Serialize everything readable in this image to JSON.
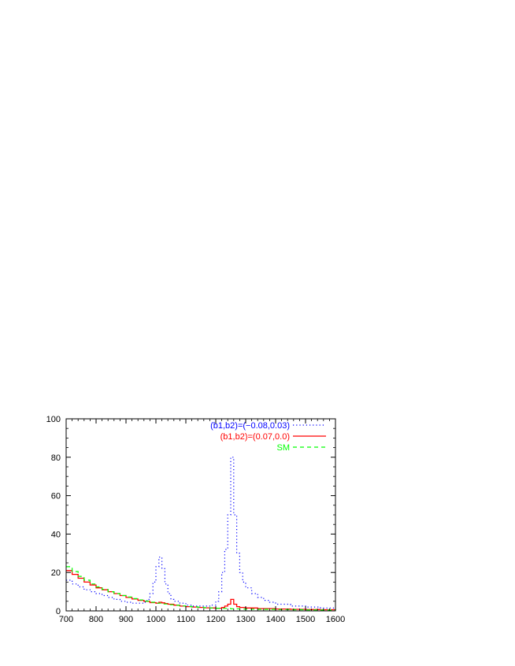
{
  "chart_data": {
    "type": "line",
    "title": "",
    "xlabel": "",
    "ylabel": "",
    "xlim": [
      700,
      1600
    ],
    "ylim": [
      0,
      100
    ],
    "xticks": [
      "700",
      "800",
      "900",
      "1000",
      "1100",
      "1200",
      "1300",
      "1400",
      "1500",
      "1600"
    ],
    "yticks": [
      "0",
      "20",
      "40",
      "60",
      "80",
      "100"
    ],
    "grid": false,
    "legend_position": "top-right",
    "series": [
      {
        "name": "(b1,b2)=(−0.08,0.03)",
        "color": "#0000ff",
        "style": "dotted",
        "x": [
          700,
          720,
          740,
          760,
          780,
          800,
          820,
          840,
          860,
          880,
          900,
          920,
          940,
          960,
          970,
          980,
          990,
          1000,
          1010,
          1020,
          1030,
          1040,
          1050,
          1060,
          1080,
          1100,
          1120,
          1140,
          1160,
          1180,
          1200,
          1210,
          1220,
          1230,
          1240,
          1250,
          1260,
          1270,
          1280,
          1290,
          1300,
          1320,
          1340,
          1360,
          1380,
          1400,
          1450,
          1500,
          1550,
          1600
        ],
        "values": [
          16,
          14,
          12.5,
          11,
          10,
          9,
          8,
          7,
          6,
          5,
          4.5,
          4,
          4,
          4.5,
          6,
          9,
          15,
          23,
          28,
          22,
          14,
          9,
          6,
          5,
          4,
          3,
          2.5,
          2.5,
          2.5,
          3,
          5,
          10,
          20,
          32,
          50,
          80,
          50,
          30,
          20,
          15,
          12,
          9,
          7,
          5.5,
          4.5,
          3.5,
          2.5,
          2,
          1.5,
          1
        ]
      },
      {
        "name": "(b1,b2)=(0.07,0.0)",
        "color": "#ff0000",
        "style": "solid",
        "x": [
          700,
          720,
          740,
          760,
          780,
          800,
          820,
          840,
          860,
          880,
          900,
          920,
          940,
          960,
          980,
          1000,
          1010,
          1020,
          1030,
          1040,
          1060,
          1080,
          1100,
          1120,
          1140,
          1160,
          1180,
          1200,
          1220,
          1230,
          1240,
          1250,
          1260,
          1270,
          1280,
          1300,
          1340,
          1400,
          1450,
          1500,
          1550,
          1600
        ],
        "values": [
          21,
          19,
          17,
          15,
          13.5,
          12,
          11,
          10,
          9,
          8,
          7,
          6.2,
          5.5,
          5,
          4.3,
          4,
          4.5,
          4.2,
          3.8,
          3.5,
          3,
          2.5,
          2.2,
          2,
          1.8,
          1.6,
          1.5,
          1.4,
          1.8,
          2.5,
          3.5,
          6,
          3.5,
          2.2,
          1.8,
          1.5,
          1.2,
          1,
          0.8,
          0.7,
          0.6,
          0.5
        ]
      },
      {
        "name": "SM",
        "color": "#00ff00",
        "style": "dashed",
        "x": [
          700,
          720,
          740,
          760,
          780,
          800,
          820,
          840,
          860,
          880,
          900,
          920,
          940,
          960,
          980,
          1000,
          1020,
          1040,
          1060,
          1080,
          1100,
          1120,
          1140,
          1160,
          1180,
          1200,
          1220,
          1250,
          1280,
          1300,
          1340,
          1400,
          1450,
          1500,
          1550,
          1600
        ],
        "values": [
          23,
          20.5,
          18,
          16,
          14,
          12.5,
          11.2,
          10,
          9,
          8,
          7.2,
          6.4,
          5.7,
          5.1,
          4.5,
          4,
          3.6,
          3.2,
          2.9,
          2.6,
          2.3,
          2.1,
          1.9,
          1.7,
          1.5,
          1.4,
          1.3,
          1.1,
          1,
          0.9,
          0.8,
          0.7,
          0.6,
          0.5,
          0.45,
          0.4
        ]
      }
    ]
  }
}
